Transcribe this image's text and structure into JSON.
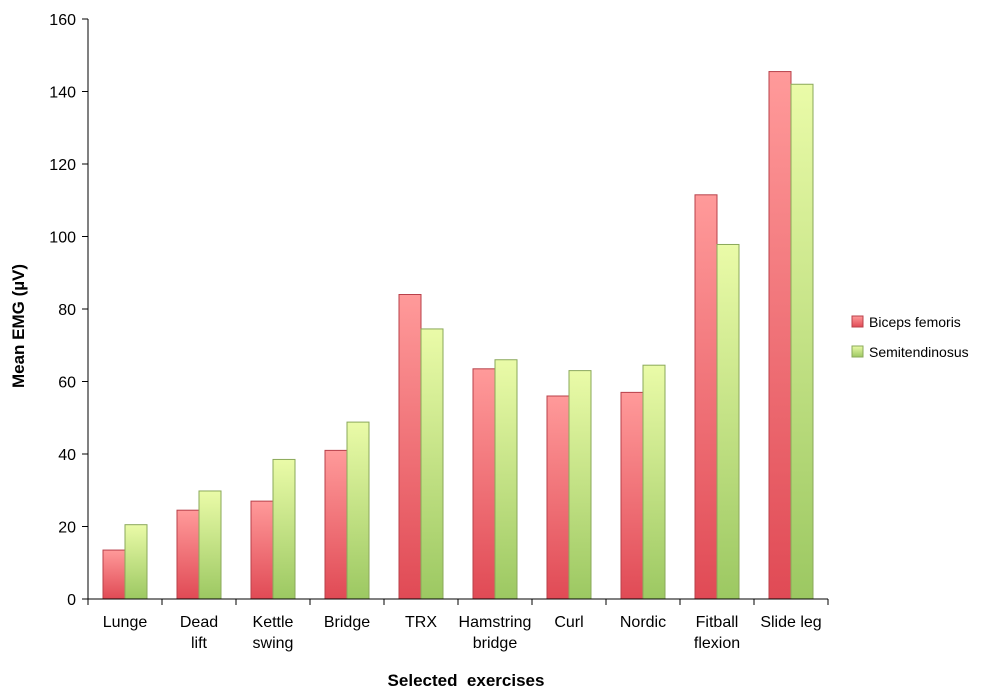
{
  "chart_data": {
    "type": "bar",
    "title": "",
    "xlabel": "Selected  exercises",
    "ylabel": "Mean EMG (µV)",
    "ylim": [
      0,
      160
    ],
    "yticks": [
      0,
      20,
      40,
      60,
      80,
      100,
      120,
      140,
      160
    ],
    "grid": false,
    "legend_position": "right",
    "categories": [
      [
        "Lunge"
      ],
      [
        "Dead",
        "lift"
      ],
      [
        "Kettle",
        "swing"
      ],
      [
        "Bridge"
      ],
      [
        "TRX"
      ],
      [
        "Hamstring",
        "bridge"
      ],
      [
        "Curl"
      ],
      [
        "Nordic"
      ],
      [
        "Fitball",
        "flexion"
      ],
      [
        "Slide leg"
      ]
    ],
    "series": [
      {
        "name": "Biceps femoris",
        "color_top": "#ff9a9a",
        "color_bottom": "#e04a55",
        "stroke": "#b8404a",
        "values": [
          13.5,
          24.5,
          27,
          41,
          84,
          63.5,
          56,
          57,
          111.5,
          145.5
        ]
      },
      {
        "name": "Semitendinosus",
        "color_top": "#eafba8",
        "color_bottom": "#9cc862",
        "stroke": "#8aa85a",
        "values": [
          20.5,
          29.8,
          38.5,
          48.8,
          74.5,
          66,
          63,
          64.5,
          97.8,
          142
        ]
      }
    ]
  }
}
